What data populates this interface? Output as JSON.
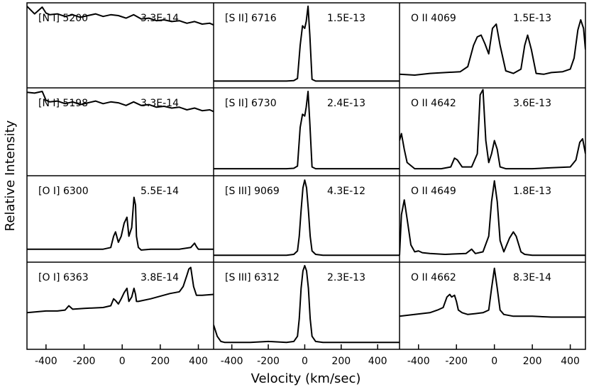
{
  "figure": {
    "ylabel": "Relative Intensity",
    "xlabel": "Velocity (km/sec)"
  },
  "chart_data": {
    "type": "line",
    "xlabel": "Velocity (km/sec)",
    "ylabel": "Relative Intensity",
    "xlim_by_column": [
      [
        -500,
        480
      ],
      [
        -500,
        520
      ],
      [
        -500,
        480
      ]
    ],
    "xticks_by_column": [
      [
        -400,
        -200,
        0,
        200,
        400
      ],
      [
        -400,
        -200,
        0,
        200,
        400
      ],
      [
        -400,
        -200,
        0,
        200,
        400
      ]
    ],
    "y_ticks_shown": false,
    "panels": [
      {
        "row": 0,
        "col": 0,
        "label": "[N I] 5200",
        "flux": "3.3E-14",
        "ylim": [
          0,
          1
        ],
        "x": [
          -500,
          -460,
          -420,
          -400,
          -380,
          -340,
          -300,
          -260,
          -220,
          -180,
          -140,
          -100,
          -60,
          -20,
          20,
          60,
          100,
          140,
          180,
          220,
          260,
          300,
          340,
          380,
          420,
          460,
          480
        ],
        "y": [
          0.96,
          0.87,
          0.95,
          0.88,
          0.86,
          0.87,
          0.84,
          0.86,
          0.83,
          0.85,
          0.87,
          0.84,
          0.86,
          0.85,
          0.82,
          0.86,
          0.81,
          0.82,
          0.79,
          0.8,
          0.78,
          0.79,
          0.76,
          0.78,
          0.75,
          0.76,
          0.74
        ]
      },
      {
        "row": 0,
        "col": 1,
        "label": "[S II] 6716",
        "flux": "1.5E-13",
        "ylim": [
          0,
          1
        ],
        "x": [
          -500,
          -100,
          -60,
          -40,
          -25,
          -12,
          0,
          8,
          18,
          28,
          40,
          60,
          100,
          200,
          520
        ],
        "y": [
          0.08,
          0.08,
          0.085,
          0.11,
          0.5,
          0.73,
          0.7,
          0.78,
          0.96,
          0.62,
          0.1,
          0.08,
          0.08,
          0.08,
          0.08
        ]
      },
      {
        "row": 0,
        "col": 2,
        "label": "O II 4069",
        "flux": "1.5E-13",
        "ylim": [
          0,
          1
        ],
        "x": [
          -500,
          -420,
          -340,
          -260,
          -180,
          -140,
          -110,
          -90,
          -70,
          -50,
          -30,
          -10,
          10,
          30,
          60,
          100,
          140,
          160,
          175,
          195,
          220,
          260,
          300,
          360,
          400,
          420,
          440,
          455,
          470,
          480
        ],
        "y": [
          0.16,
          0.15,
          0.17,
          0.18,
          0.19,
          0.25,
          0.5,
          0.6,
          0.62,
          0.52,
          0.4,
          0.7,
          0.75,
          0.5,
          0.2,
          0.17,
          0.22,
          0.5,
          0.62,
          0.45,
          0.17,
          0.16,
          0.18,
          0.19,
          0.22,
          0.35,
          0.68,
          0.8,
          0.7,
          0.45
        ]
      },
      {
        "row": 1,
        "col": 0,
        "label": "[N I] 5198",
        "flux": "3.3E-14",
        "ylim": [
          0,
          1
        ],
        "x": [
          -500,
          -460,
          -420,
          -400,
          -380,
          -340,
          -300,
          -260,
          -220,
          -180,
          -140,
          -100,
          -60,
          -20,
          20,
          60,
          100,
          140,
          180,
          220,
          260,
          300,
          340,
          380,
          420,
          460,
          480
        ],
        "y": [
          0.95,
          0.94,
          0.96,
          0.86,
          0.84,
          0.85,
          0.82,
          0.84,
          0.81,
          0.83,
          0.85,
          0.82,
          0.84,
          0.83,
          0.8,
          0.84,
          0.8,
          0.81,
          0.78,
          0.79,
          0.77,
          0.78,
          0.75,
          0.77,
          0.74,
          0.75,
          0.73
        ]
      },
      {
        "row": 1,
        "col": 1,
        "label": "[S II] 6730",
        "flux": "2.4E-13",
        "ylim": [
          0,
          1
        ],
        "x": [
          -500,
          -100,
          -60,
          -40,
          -25,
          -12,
          0,
          8,
          18,
          28,
          40,
          60,
          100,
          200,
          520
        ],
        "y": [
          0.08,
          0.08,
          0.085,
          0.11,
          0.55,
          0.7,
          0.68,
          0.78,
          0.96,
          0.6,
          0.1,
          0.08,
          0.08,
          0.08,
          0.08
        ]
      },
      {
        "row": 1,
        "col": 2,
        "label": "O II 4642",
        "flux": "3.6E-13",
        "ylim": [
          0,
          1
        ],
        "x": [
          -500,
          -490,
          -475,
          -460,
          -420,
          -350,
          -280,
          -230,
          -210,
          -195,
          -170,
          -120,
          -90,
          -75,
          -60,
          -45,
          -30,
          -15,
          0,
          15,
          30,
          60,
          120,
          200,
          300,
          400,
          430,
          450,
          465,
          480
        ],
        "y": [
          0.4,
          0.48,
          0.3,
          0.15,
          0.08,
          0.08,
          0.08,
          0.1,
          0.2,
          0.18,
          0.1,
          0.1,
          0.25,
          0.92,
          0.98,
          0.4,
          0.15,
          0.25,
          0.4,
          0.3,
          0.1,
          0.08,
          0.08,
          0.08,
          0.09,
          0.1,
          0.18,
          0.38,
          0.42,
          0.25
        ]
      },
      {
        "row": 2,
        "col": 0,
        "label": "[O I] 6300",
        "flux": "5.5E-14",
        "ylim": [
          0,
          1
        ],
        "x": [
          -500,
          -400,
          -300,
          -200,
          -100,
          -60,
          -45,
          -35,
          -20,
          -5,
          10,
          25,
          35,
          50,
          62,
          70,
          75,
          85,
          100,
          150,
          200,
          300,
          360,
          380,
          390,
          400,
          440,
          480
        ],
        "y": [
          0.15,
          0.15,
          0.15,
          0.15,
          0.15,
          0.17,
          0.3,
          0.35,
          0.23,
          0.3,
          0.45,
          0.52,
          0.3,
          0.4,
          0.75,
          0.66,
          0.3,
          0.17,
          0.14,
          0.15,
          0.15,
          0.15,
          0.17,
          0.22,
          0.18,
          0.15,
          0.15,
          0.15
        ]
      },
      {
        "row": 2,
        "col": 1,
        "label": "[S III] 9069",
        "flux": "4.3E-12",
        "ylim": [
          0,
          1
        ],
        "x": [
          -500,
          -200,
          -100,
          -60,
          -40,
          -30,
          -20,
          -10,
          0,
          10,
          20,
          30,
          40,
          60,
          100,
          200,
          520
        ],
        "y": [
          0.08,
          0.08,
          0.08,
          0.09,
          0.13,
          0.3,
          0.6,
          0.86,
          0.95,
          0.86,
          0.6,
          0.3,
          0.13,
          0.09,
          0.08,
          0.08,
          0.08
        ]
      },
      {
        "row": 2,
        "col": 2,
        "label": "O II 4649",
        "flux": "1.8E-13",
        "ylim": [
          0,
          1
        ],
        "x": [
          -500,
          -490,
          -475,
          -460,
          -440,
          -420,
          -400,
          -380,
          -340,
          -260,
          -150,
          -120,
          -100,
          -60,
          -30,
          -15,
          0,
          15,
          30,
          50,
          80,
          100,
          115,
          140,
          160,
          200,
          300,
          400,
          480
        ],
        "y": [
          0.08,
          0.55,
          0.72,
          0.5,
          0.2,
          0.12,
          0.13,
          0.11,
          0.1,
          0.09,
          0.1,
          0.15,
          0.1,
          0.12,
          0.3,
          0.7,
          0.94,
          0.7,
          0.25,
          0.12,
          0.28,
          0.35,
          0.3,
          0.12,
          0.09,
          0.08,
          0.08,
          0.08,
          0.08
        ]
      },
      {
        "row": 3,
        "col": 0,
        "label": "[O I] 6363",
        "flux": "3.8E-14",
        "ylim": [
          0,
          1
        ],
        "x": [
          -500,
          -400,
          -340,
          -300,
          -280,
          -260,
          -200,
          -100,
          -60,
          -45,
          -35,
          -20,
          -5,
          10,
          25,
          35,
          50,
          62,
          70,
          75,
          85,
          150,
          250,
          300,
          320,
          340,
          350,
          360,
          375,
          390,
          420,
          480
        ],
        "y": [
          0.42,
          0.44,
          0.44,
          0.45,
          0.5,
          0.46,
          0.47,
          0.48,
          0.5,
          0.58,
          0.56,
          0.52,
          0.58,
          0.65,
          0.7,
          0.55,
          0.6,
          0.7,
          0.63,
          0.55,
          0.55,
          0.58,
          0.64,
          0.66,
          0.72,
          0.85,
          0.92,
          0.94,
          0.72,
          0.62,
          0.62,
          0.63
        ]
      },
      {
        "row": 3,
        "col": 1,
        "label": "[S III] 6312",
        "flux": "2.3E-13",
        "ylim": [
          0,
          1
        ],
        "x": [
          -500,
          -480,
          -460,
          -440,
          -300,
          -200,
          -100,
          -60,
          -40,
          -30,
          -20,
          -10,
          0,
          10,
          20,
          30,
          40,
          60,
          100,
          200,
          520
        ],
        "y": [
          0.28,
          0.15,
          0.09,
          0.08,
          0.08,
          0.09,
          0.08,
          0.09,
          0.15,
          0.35,
          0.7,
          0.9,
          0.96,
          0.9,
          0.7,
          0.35,
          0.15,
          0.09,
          0.08,
          0.08,
          0.08
        ]
      },
      {
        "row": 3,
        "col": 2,
        "label": "O II 4662",
        "flux": "8.3E-14",
        "ylim": [
          0,
          1
        ],
        "x": [
          -500,
          -420,
          -340,
          -300,
          -270,
          -250,
          -235,
          -225,
          -210,
          -200,
          -190,
          -170,
          -140,
          -100,
          -60,
          -30,
          -15,
          0,
          15,
          30,
          50,
          100,
          200,
          300,
          400,
          480
        ],
        "y": [
          0.38,
          0.4,
          0.42,
          0.45,
          0.48,
          0.6,
          0.63,
          0.6,
          0.62,
          0.55,
          0.45,
          0.42,
          0.4,
          0.41,
          0.42,
          0.45,
          0.7,
          0.93,
          0.7,
          0.45,
          0.4,
          0.38,
          0.38,
          0.37,
          0.37,
          0.37
        ]
      }
    ]
  }
}
